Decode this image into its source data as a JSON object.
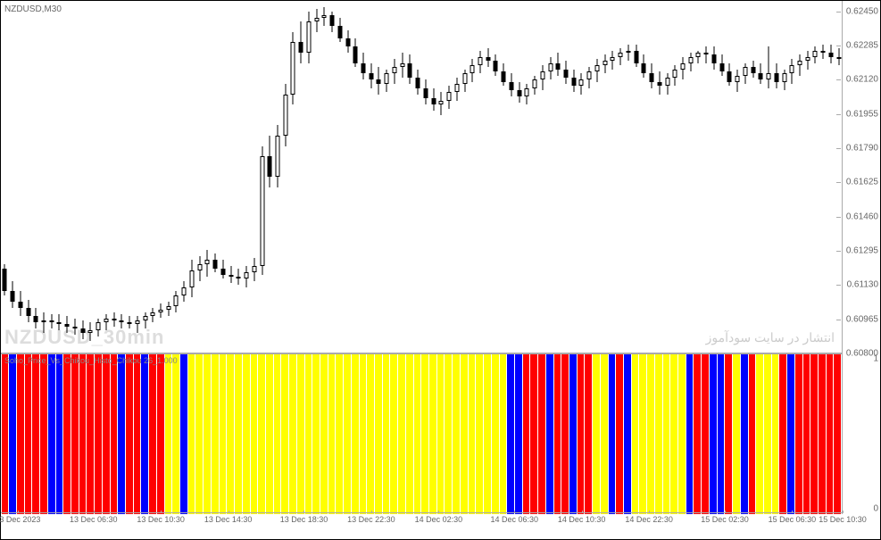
{
  "chart": {
    "title": "NZDUSD,M30",
    "watermark1": "NZDUSD_30min",
    "watermark2": "انتشار در سایت سودآموز",
    "price_axis": {
      "min": 0.608,
      "max": 0.625,
      "ticks": [
        {
          "value": 0.6245,
          "label": "0.62450"
        },
        {
          "value": 0.62285,
          "label": "0.62285"
        },
        {
          "value": 0.6212,
          "label": "0.62120"
        },
        {
          "value": 0.61955,
          "label": "0.61955"
        },
        {
          "value": 0.6179,
          "label": "0.61790"
        },
        {
          "value": 0.61625,
          "label": "0.61625"
        },
        {
          "value": 0.6146,
          "label": "0.61460"
        },
        {
          "value": 0.61295,
          "label": "0.61295"
        },
        {
          "value": 0.6113,
          "label": "0.61130"
        },
        {
          "value": 0.60965,
          "label": "0.60965"
        },
        {
          "value": 0.608,
          "label": "0.60800"
        }
      ]
    },
    "candles": [
      {
        "o": 0.6121,
        "h": 0.6123,
        "l": 0.6108,
        "c": 0.611
      },
      {
        "o": 0.611,
        "h": 0.6115,
        "l": 0.6102,
        "c": 0.6105
      },
      {
        "o": 0.6105,
        "h": 0.611,
        "l": 0.6098,
        "c": 0.6102
      },
      {
        "o": 0.6102,
        "h": 0.6106,
        "l": 0.6095,
        "c": 0.6098
      },
      {
        "o": 0.6098,
        "h": 0.6102,
        "l": 0.6092,
        "c": 0.6095
      },
      {
        "o": 0.6095,
        "h": 0.61,
        "l": 0.609,
        "c": 0.6096
      },
      {
        "o": 0.6096,
        "h": 0.6099,
        "l": 0.6092,
        "c": 0.6095
      },
      {
        "o": 0.6095,
        "h": 0.6099,
        "l": 0.6091,
        "c": 0.6094
      },
      {
        "o": 0.6094,
        "h": 0.6098,
        "l": 0.609,
        "c": 0.6093
      },
      {
        "o": 0.6093,
        "h": 0.6097,
        "l": 0.6089,
        "c": 0.6092
      },
      {
        "o": 0.6092,
        "h": 0.6096,
        "l": 0.6087,
        "c": 0.609
      },
      {
        "o": 0.609,
        "h": 0.6095,
        "l": 0.6086,
        "c": 0.6091
      },
      {
        "o": 0.6091,
        "h": 0.6097,
        "l": 0.6088,
        "c": 0.6095
      },
      {
        "o": 0.6095,
        "h": 0.6099,
        "l": 0.6091,
        "c": 0.6097
      },
      {
        "o": 0.6097,
        "h": 0.61,
        "l": 0.6093,
        "c": 0.6096
      },
      {
        "o": 0.6096,
        "h": 0.6099,
        "l": 0.6092,
        "c": 0.6095
      },
      {
        "o": 0.6095,
        "h": 0.6098,
        "l": 0.6092,
        "c": 0.6094
      },
      {
        "o": 0.6094,
        "h": 0.6098,
        "l": 0.609,
        "c": 0.6096
      },
      {
        "o": 0.6096,
        "h": 0.61,
        "l": 0.6092,
        "c": 0.6098
      },
      {
        "o": 0.6098,
        "h": 0.6102,
        "l": 0.6095,
        "c": 0.61
      },
      {
        "o": 0.61,
        "h": 0.6104,
        "l": 0.6097,
        "c": 0.6101
      },
      {
        "o": 0.6101,
        "h": 0.6105,
        "l": 0.6098,
        "c": 0.6103
      },
      {
        "o": 0.6103,
        "h": 0.611,
        "l": 0.61,
        "c": 0.6108
      },
      {
        "o": 0.6108,
        "h": 0.6115,
        "l": 0.6105,
        "c": 0.6112
      },
      {
        "o": 0.6112,
        "h": 0.6125,
        "l": 0.6107,
        "c": 0.612
      },
      {
        "o": 0.612,
        "h": 0.6127,
        "l": 0.6115,
        "c": 0.6123
      },
      {
        "o": 0.6123,
        "h": 0.613,
        "l": 0.6117,
        "c": 0.6125
      },
      {
        "o": 0.6125,
        "h": 0.6128,
        "l": 0.6119,
        "c": 0.6121
      },
      {
        "o": 0.6121,
        "h": 0.6125,
        "l": 0.6116,
        "c": 0.6118
      },
      {
        "o": 0.6118,
        "h": 0.6122,
        "l": 0.6114,
        "c": 0.6117
      },
      {
        "o": 0.6117,
        "h": 0.6121,
        "l": 0.6113,
        "c": 0.6116
      },
      {
        "o": 0.6116,
        "h": 0.6122,
        "l": 0.6112,
        "c": 0.6119
      },
      {
        "o": 0.6119,
        "h": 0.6126,
        "l": 0.6115,
        "c": 0.6122
      },
      {
        "o": 0.6122,
        "h": 0.618,
        "l": 0.6118,
        "c": 0.6175
      },
      {
        "o": 0.6175,
        "h": 0.6185,
        "l": 0.616,
        "c": 0.6165
      },
      {
        "o": 0.6165,
        "h": 0.619,
        "l": 0.616,
        "c": 0.6185
      },
      {
        "o": 0.6185,
        "h": 0.621,
        "l": 0.618,
        "c": 0.6205
      },
      {
        "o": 0.6205,
        "h": 0.6235,
        "l": 0.62,
        "c": 0.623
      },
      {
        "o": 0.623,
        "h": 0.624,
        "l": 0.622,
        "c": 0.6225
      },
      {
        "o": 0.6225,
        "h": 0.6245,
        "l": 0.622,
        "c": 0.624
      },
      {
        "o": 0.624,
        "h": 0.6246,
        "l": 0.6235,
        "c": 0.6242
      },
      {
        "o": 0.6242,
        "h": 0.6247,
        "l": 0.6238,
        "c": 0.6243
      },
      {
        "o": 0.6243,
        "h": 0.6245,
        "l": 0.6235,
        "c": 0.6238
      },
      {
        "o": 0.6238,
        "h": 0.6242,
        "l": 0.623,
        "c": 0.6232
      },
      {
        "o": 0.6232,
        "h": 0.6236,
        "l": 0.6225,
        "c": 0.6228
      },
      {
        "o": 0.6228,
        "h": 0.6232,
        "l": 0.6218,
        "c": 0.622
      },
      {
        "o": 0.622,
        "h": 0.6225,
        "l": 0.6212,
        "c": 0.6215
      },
      {
        "o": 0.6215,
        "h": 0.622,
        "l": 0.6208,
        "c": 0.6212
      },
      {
        "o": 0.6212,
        "h": 0.6218,
        "l": 0.6205,
        "c": 0.621
      },
      {
        "o": 0.621,
        "h": 0.6217,
        "l": 0.6206,
        "c": 0.6215
      },
      {
        "o": 0.6215,
        "h": 0.6222,
        "l": 0.621,
        "c": 0.6218
      },
      {
        "o": 0.6218,
        "h": 0.6225,
        "l": 0.6213,
        "c": 0.622
      },
      {
        "o": 0.622,
        "h": 0.6224,
        "l": 0.621,
        "c": 0.6213
      },
      {
        "o": 0.6213,
        "h": 0.6217,
        "l": 0.6205,
        "c": 0.6208
      },
      {
        "o": 0.6208,
        "h": 0.6212,
        "l": 0.62,
        "c": 0.6203
      },
      {
        "o": 0.6203,
        "h": 0.6208,
        "l": 0.6197,
        "c": 0.62
      },
      {
        "o": 0.62,
        "h": 0.6206,
        "l": 0.6195,
        "c": 0.6202
      },
      {
        "o": 0.6202,
        "h": 0.6209,
        "l": 0.6198,
        "c": 0.6206
      },
      {
        "o": 0.6206,
        "h": 0.6213,
        "l": 0.6202,
        "c": 0.621
      },
      {
        "o": 0.621,
        "h": 0.6217,
        "l": 0.6206,
        "c": 0.6215
      },
      {
        "o": 0.6215,
        "h": 0.6222,
        "l": 0.6211,
        "c": 0.6219
      },
      {
        "o": 0.6219,
        "h": 0.6226,
        "l": 0.6215,
        "c": 0.6223
      },
      {
        "o": 0.6223,
        "h": 0.6227,
        "l": 0.6218,
        "c": 0.6221
      },
      {
        "o": 0.6221,
        "h": 0.6224,
        "l": 0.6214,
        "c": 0.6216
      },
      {
        "o": 0.6216,
        "h": 0.622,
        "l": 0.6209,
        "c": 0.6211
      },
      {
        "o": 0.6211,
        "h": 0.6215,
        "l": 0.6204,
        "c": 0.6207
      },
      {
        "o": 0.6207,
        "h": 0.6211,
        "l": 0.6201,
        "c": 0.6204
      },
      {
        "o": 0.6204,
        "h": 0.621,
        "l": 0.62,
        "c": 0.6208
      },
      {
        "o": 0.6208,
        "h": 0.6214,
        "l": 0.6205,
        "c": 0.6212
      },
      {
        "o": 0.6212,
        "h": 0.6219,
        "l": 0.6207,
        "c": 0.6216
      },
      {
        "o": 0.6216,
        "h": 0.6223,
        "l": 0.6212,
        "c": 0.622
      },
      {
        "o": 0.622,
        "h": 0.6225,
        "l": 0.6214,
        "c": 0.6217
      },
      {
        "o": 0.6217,
        "h": 0.6221,
        "l": 0.621,
        "c": 0.6213
      },
      {
        "o": 0.6213,
        "h": 0.6217,
        "l": 0.6206,
        "c": 0.6209
      },
      {
        "o": 0.6209,
        "h": 0.6215,
        "l": 0.6205,
        "c": 0.6212
      },
      {
        "o": 0.6212,
        "h": 0.6218,
        "l": 0.6208,
        "c": 0.6216
      },
      {
        "o": 0.6216,
        "h": 0.6222,
        "l": 0.6211,
        "c": 0.6219
      },
      {
        "o": 0.6219,
        "h": 0.6224,
        "l": 0.6215,
        "c": 0.6221
      },
      {
        "o": 0.6221,
        "h": 0.6226,
        "l": 0.6217,
        "c": 0.6223
      },
      {
        "o": 0.6223,
        "h": 0.6227,
        "l": 0.6219,
        "c": 0.6225
      },
      {
        "o": 0.6225,
        "h": 0.6229,
        "l": 0.6221,
        "c": 0.6226
      },
      {
        "o": 0.6226,
        "h": 0.6229,
        "l": 0.6218,
        "c": 0.622
      },
      {
        "o": 0.622,
        "h": 0.6224,
        "l": 0.6213,
        "c": 0.6215
      },
      {
        "o": 0.6215,
        "h": 0.622,
        "l": 0.6208,
        "c": 0.6211
      },
      {
        "o": 0.6211,
        "h": 0.6216,
        "l": 0.6205,
        "c": 0.6209
      },
      {
        "o": 0.6209,
        "h": 0.6215,
        "l": 0.6205,
        "c": 0.6213
      },
      {
        "o": 0.6213,
        "h": 0.6219,
        "l": 0.6209,
        "c": 0.6217
      },
      {
        "o": 0.6217,
        "h": 0.6223,
        "l": 0.6212,
        "c": 0.622
      },
      {
        "o": 0.622,
        "h": 0.6225,
        "l": 0.6216,
        "c": 0.6223
      },
      {
        "o": 0.6223,
        "h": 0.6226,
        "l": 0.622,
        "c": 0.6225
      },
      {
        "o": 0.6225,
        "h": 0.6228,
        "l": 0.622,
        "c": 0.6224
      },
      {
        "o": 0.6224,
        "h": 0.6228,
        "l": 0.6217,
        "c": 0.622
      },
      {
        "o": 0.622,
        "h": 0.6224,
        "l": 0.6214,
        "c": 0.6216
      },
      {
        "o": 0.6216,
        "h": 0.622,
        "l": 0.6209,
        "c": 0.6211
      },
      {
        "o": 0.6211,
        "h": 0.6217,
        "l": 0.6206,
        "c": 0.6214
      },
      {
        "o": 0.6214,
        "h": 0.622,
        "l": 0.621,
        "c": 0.6218
      },
      {
        "o": 0.6218,
        "h": 0.6221,
        "l": 0.6213,
        "c": 0.6215
      },
      {
        "o": 0.6215,
        "h": 0.622,
        "l": 0.621,
        "c": 0.6212
      },
      {
        "o": 0.6212,
        "h": 0.6228,
        "l": 0.6208,
        "c": 0.6215
      },
      {
        "o": 0.6215,
        "h": 0.622,
        "l": 0.6208,
        "c": 0.6211
      },
      {
        "o": 0.6211,
        "h": 0.6217,
        "l": 0.6207,
        "c": 0.6215
      },
      {
        "o": 0.6215,
        "h": 0.6222,
        "l": 0.621,
        "c": 0.6219
      },
      {
        "o": 0.6219,
        "h": 0.6224,
        "l": 0.6214,
        "c": 0.6221
      },
      {
        "o": 0.6221,
        "h": 0.6226,
        "l": 0.6217,
        "c": 0.6223
      },
      {
        "o": 0.6223,
        "h": 0.6228,
        "l": 0.622,
        "c": 0.6226
      },
      {
        "o": 0.6226,
        "h": 0.6229,
        "l": 0.6222,
        "c": 0.6225
      },
      {
        "o": 0.6225,
        "h": 0.6229,
        "l": 0.622,
        "c": 0.6223
      },
      {
        "o": 0.6223,
        "h": 0.6227,
        "l": 0.6219,
        "c": 0.6222
      }
    ],
    "indicator": {
      "label": "Soho_Price_Vs_Chikou_Histo_Chikou 26_1.000",
      "colors": {
        "red": "#ff0000",
        "blue": "#0000ff",
        "yellow": "#ffff00"
      },
      "bars": [
        "red",
        "blue",
        "red",
        "red",
        "red",
        "red",
        "blue",
        "blue",
        "red",
        "red",
        "red",
        "red",
        "red",
        "red",
        "red",
        "blue",
        "red",
        "red",
        "blue",
        "red",
        "red",
        "yellow",
        "yellow",
        "blue",
        "yellow",
        "yellow",
        "yellow",
        "yellow",
        "yellow",
        "yellow",
        "yellow",
        "yellow",
        "yellow",
        "yellow",
        "yellow",
        "yellow",
        "yellow",
        "yellow",
        "yellow",
        "yellow",
        "yellow",
        "yellow",
        "yellow",
        "yellow",
        "yellow",
        "yellow",
        "yellow",
        "yellow",
        "yellow",
        "yellow",
        "yellow",
        "yellow",
        "yellow",
        "yellow",
        "yellow",
        "yellow",
        "yellow",
        "yellow",
        "yellow",
        "yellow",
        "yellow",
        "yellow",
        "yellow",
        "yellow",
        "yellow",
        "blue",
        "blue",
        "red",
        "red",
        "red",
        "blue",
        "red",
        "red",
        "blue",
        "red",
        "red",
        "yellow",
        "yellow",
        "blue",
        "red",
        "blue",
        "yellow",
        "yellow",
        "yellow",
        "yellow",
        "yellow",
        "yellow",
        "yellow",
        "blue",
        "red",
        "red",
        "blue",
        "blue",
        "red",
        "yellow",
        "blue",
        "red",
        "yellow",
        "yellow",
        "yellow",
        "red",
        "blue",
        "red",
        "red",
        "red",
        "red",
        "red",
        "red"
      ],
      "yaxis": [
        {
          "value": 1,
          "label": "1"
        },
        {
          "value": 0,
          "label": "0"
        }
      ]
    },
    "xaxis": {
      "ticks": [
        {
          "pos": 0.02,
          "label": "13 Dec 2023"
        },
        {
          "pos": 0.11,
          "label": "13 Dec 06:30"
        },
        {
          "pos": 0.19,
          "label": "13 Dec 10:30"
        },
        {
          "pos": 0.27,
          "label": "13 Dec 14:30"
        },
        {
          "pos": 0.36,
          "label": "13 Dec 18:30"
        },
        {
          "pos": 0.44,
          "label": "13 Dec 22:30"
        },
        {
          "pos": 0.52,
          "label": "14 Dec 02:30"
        },
        {
          "pos": 0.61,
          "label": "14 Dec 06:30"
        },
        {
          "pos": 0.69,
          "label": "14 Dec 10:30"
        },
        {
          "pos": 0.77,
          "label": "14 Dec 22:30"
        },
        {
          "pos": 0.86,
          "label": "15 Dec 02:30"
        },
        {
          "pos": 0.94,
          "label": "15 Dec 06:30"
        },
        {
          "pos": 1.0,
          "label": "15 Dec 10:30"
        }
      ]
    }
  }
}
